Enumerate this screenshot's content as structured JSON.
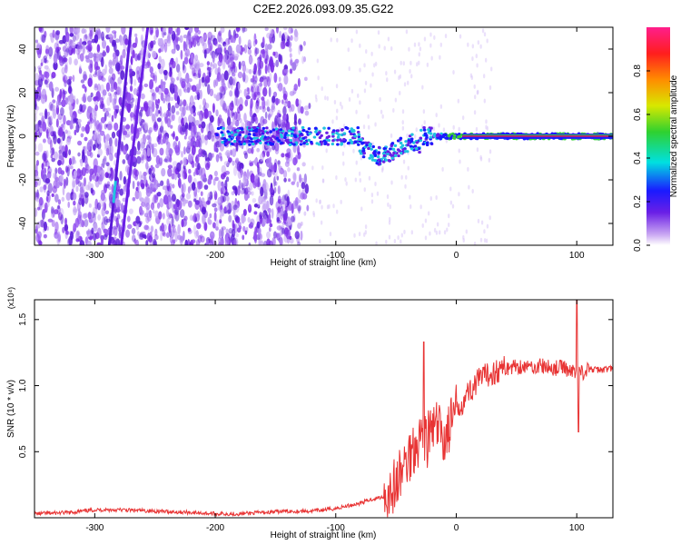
{
  "title": "C2E2.2026.093.09.35.G22",
  "colors": {
    "snr_line": "#e83434",
    "spectrogram_dot": "#7b2be8",
    "axes": "#000000"
  },
  "chart_data": [
    {
      "type": "heatmap",
      "xlabel": "Height of straight line (km)",
      "ylabel": "Frequency (Hz)",
      "xlim": [
        -350,
        130
      ],
      "ylim": [
        -50,
        50
      ],
      "xticks": [
        "-300",
        "-200",
        "-100",
        "0",
        "100"
      ],
      "yticks": [
        "-40",
        "-20",
        "0",
        "20",
        "40"
      ],
      "colorbar": {
        "label": "Normalized spectral amplitude",
        "range": [
          0,
          1
        ],
        "ticks": [
          "0.0",
          "0.2",
          "0.4",
          "0.6",
          "0.8"
        ]
      }
    },
    {
      "type": "line",
      "xlabel": "Height of straight line (km)",
      "ylabel": "SNR (10 * v/v)",
      "scale_note": "(x10⁴)",
      "xlim": [
        -350,
        130
      ],
      "ylim": [
        0,
        1.65
      ],
      "xticks": [
        "-300",
        "-200",
        "-100",
        "0",
        "100"
      ],
      "yticks": [
        "0.5",
        "1.0",
        "1.5"
      ],
      "series": [
        {
          "x": [
            -350,
            -320,
            -300,
            -280,
            -250,
            -220,
            -200,
            -180,
            -160,
            -140,
            -120,
            -100,
            -90,
            -80,
            -70,
            -60,
            -55,
            -50,
            -45,
            -40,
            -35,
            -30,
            -25,
            -20,
            -15,
            -10,
            -5,
            0,
            5,
            10,
            20,
            30,
            40,
            50,
            60,
            70,
            80,
            90,
            95,
            100,
            105,
            110,
            120,
            130
          ],
          "y": [
            0.03,
            0.04,
            0.06,
            0.06,
            0.05,
            0.04,
            0.03,
            0.03,
            0.04,
            0.05,
            0.05,
            0.07,
            0.09,
            0.11,
            0.14,
            0.16,
            0.2,
            0.25,
            0.35,
            0.45,
            0.55,
            0.62,
            0.58,
            0.66,
            0.68,
            0.6,
            0.7,
            0.8,
            0.88,
            0.95,
            1.05,
            1.1,
            1.13,
            1.15,
            1.14,
            1.15,
            1.13,
            1.14,
            1.1,
            1.12,
            1.1,
            1.12,
            1.12,
            1.13
          ]
        }
      ]
    }
  ]
}
